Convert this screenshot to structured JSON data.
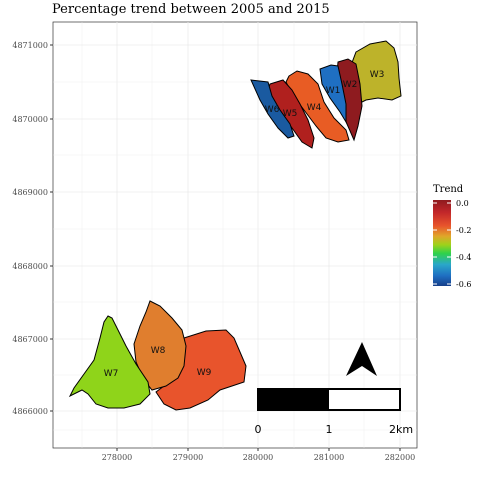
{
  "title": "Percentage trend between 2005 and 2015",
  "axes": {
    "y_ticks": [
      "4871000",
      "4870000",
      "4869000",
      "4868000",
      "4867000",
      "4866000"
    ],
    "x_ticks": [
      "278000",
      "279000",
      "280000",
      "281000",
      "282000"
    ]
  },
  "legend": {
    "title": "Trend",
    "labels": [
      "0.0",
      "-0.2",
      "-0.4",
      "-0.6"
    ]
  },
  "regions": [
    {
      "label": "W1",
      "color": "#1f6fc2"
    },
    {
      "label": "W2",
      "color": "#8e1b1f"
    },
    {
      "label": "W3",
      "color": "#bdb32a"
    },
    {
      "label": "W4",
      "color": "#e85c24"
    },
    {
      "label": "W5",
      "color": "#b0201e"
    },
    {
      "label": "W6",
      "color": "#1a5aa0"
    },
    {
      "label": "W7",
      "color": "#8fd41a"
    },
    {
      "label": "W8",
      "color": "#e07e2e"
    },
    {
      "label": "W9",
      "color": "#e8542c"
    }
  ],
  "scalebar": {
    "labels": [
      "0",
      "1",
      "2km"
    ]
  }
}
